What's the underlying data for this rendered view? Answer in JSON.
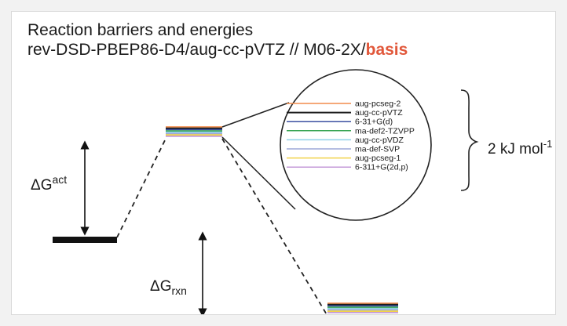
{
  "title": "Reaction barriers and energies",
  "subtitle_prefix": "rev-DSD-PBEP86-D4/aug-cc-pVTZ // M06-2X/",
  "subtitle_highlight": "basis",
  "delta_g_act": {
    "symbol": "ΔG",
    "superscript": "act"
  },
  "delta_g_rxn": {
    "symbol": "ΔG",
    "subscript": "rxn"
  },
  "energy_range": {
    "text": "2 kJ mol",
    "superscript": "-1"
  },
  "colors": {
    "highlight": "#e1573a",
    "reactant": "#111111",
    "lines": "#222222"
  },
  "basis_sets": [
    {
      "name": "aug-pcseg-2",
      "color": "#f28c4b"
    },
    {
      "name": "aug-cc-pVTZ",
      "color": "#1b1b1b"
    },
    {
      "name": "6-31+G(d)",
      "color": "#3a4fa0"
    },
    {
      "name": "ma-def2-TZVPP",
      "color": "#3aa655"
    },
    {
      "name": "aug-cc-pVDZ",
      "color": "#8fd0e8"
    },
    {
      "name": "ma-def-SVP",
      "color": "#9ea8d8"
    },
    {
      "name": "aug-pcseg-1",
      "color": "#f0d24a"
    },
    {
      "name": "6-311+G(2d,p)",
      "color": "#c49ad8"
    }
  ]
}
